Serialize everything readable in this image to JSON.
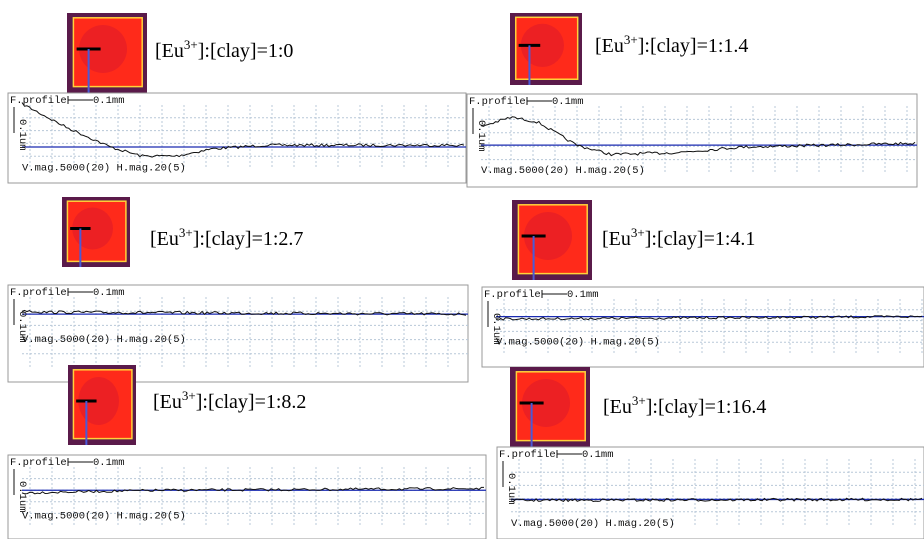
{
  "panels": [
    {
      "label": {
        "prefix": "[Eu",
        "sup": "3+",
        "suffix": "]:[clay]=1:0"
      },
      "profile": {
        "title": "F.profile",
        "h_scale": "0.1mm",
        "v_scale": "0.1um",
        "magnification": "V.mag.5000(20) H.mag.20(5)"
      }
    },
    {
      "label": {
        "prefix": "[Eu",
        "sup": "3+",
        "suffix": "]:[clay]=1:1.4"
      },
      "profile": {
        "title": "F.profile",
        "h_scale": "0.1mm",
        "v_scale": "0.1um",
        "magnification": "V.mag.5000(20) H.mag.20(5)"
      }
    },
    {
      "label": {
        "prefix": "[Eu",
        "sup": "3+",
        "suffix": "]:[clay]=1:2.7"
      },
      "profile": {
        "title": "F.profile",
        "h_scale": "0.1mm",
        "v_scale": "0.1um",
        "magnification": "V.mag.5000(20) H.mag.20(5)"
      }
    },
    {
      "label": {
        "prefix": "[Eu",
        "sup": "3+",
        "suffix": "]:[clay]=1:4.1"
      },
      "profile": {
        "title": "F.profile",
        "h_scale": "0.1mm",
        "v_scale": "0.1um",
        "magnification": "V.mag.5000(20) H.mag.20(5)"
      }
    },
    {
      "label": {
        "prefix": "[Eu",
        "sup": "3+",
        "suffix": "]:[clay]=1:8.2"
      },
      "profile": {
        "title": "F.profile",
        "h_scale": "0.1mm",
        "v_scale": "0.1um",
        "magnification": "V.mag.5000(20) H.mag.20(5)"
      }
    },
    {
      "label": {
        "prefix": "[Eu",
        "sup": "3+",
        "suffix": "]:[clay]=1:16.4"
      },
      "profile": {
        "title": "F.profile",
        "h_scale": "0.1mm",
        "v_scale": "0.1um",
        "magnification": "V.mag.5000(20) H.mag.20(5)"
      }
    }
  ]
}
